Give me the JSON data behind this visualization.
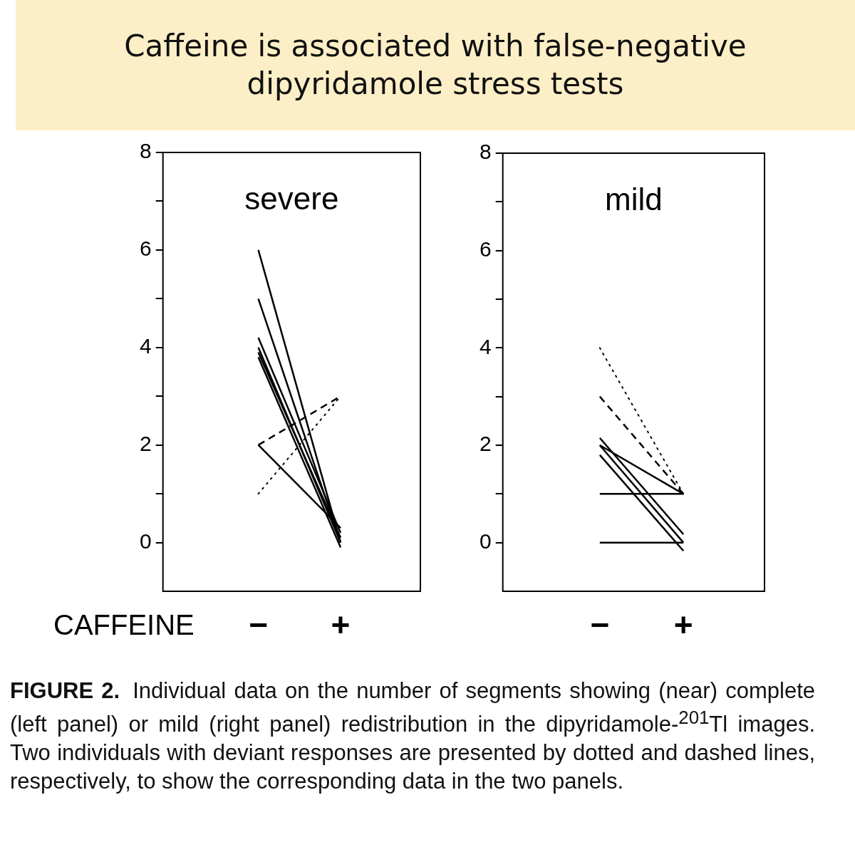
{
  "chart_data": [
    {
      "type": "line",
      "title": "Caffeine is associated with false-negative dipyridamole stress tests",
      "subtitle": "severe",
      "xlabel": "CAFFEINE",
      "categories": [
        "−",
        "+"
      ],
      "ylim": [
        -1,
        8
      ],
      "yticks": [
        0,
        {
          "value": 1,
          "label": null
        },
        2,
        {
          "value": 3,
          "label": null
        },
        4,
        {
          "value": 5,
          "label": null
        },
        6,
        {
          "value": 7,
          "label": null
        },
        8
      ],
      "grid": false,
      "legend": false,
      "marker": "none",
      "line_style": "solid",
      "series": [
        {
          "color": "#000000",
          "values": [
            6,
            0
          ]
        },
        {
          "color": "#000000",
          "values": [
            5,
            0
          ]
        },
        {
          "color": "#000000",
          "values": [
            4.2,
            0.2
          ]
        },
        {
          "color": "#000000",
          "values": [
            4,
            0
          ]
        },
        {
          "color": "#000000",
          "values": [
            3.9,
            0.1
          ]
        },
        {
          "color": "#000000",
          "values": [
            3.8,
            -0.1
          ]
        },
        {
          "color": "#000000",
          "values": [
            2,
            0.3
          ]
        },
        {
          "color": "#000000",
          "values": [
            2,
            3
          ],
          "line_style": "dashed"
        },
        {
          "color": "#000000",
          "values": [
            1,
            3
          ],
          "line_style": "dotted"
        }
      ]
    },
    {
      "type": "line",
      "subtitle": "mild",
      "categories": [
        "−",
        "+"
      ],
      "ylim": [
        -1,
        8
      ],
      "yticks": [
        0,
        {
          "value": 1,
          "label": null
        },
        2,
        {
          "value": 3,
          "label": null
        },
        4,
        {
          "value": 5,
          "label": null
        },
        6,
        {
          "value": 7,
          "label": null
        },
        8
      ],
      "grid": false,
      "legend": false,
      "marker": "none",
      "line_style": "solid",
      "annotations": [
        "FIGURE 2.",
        "Individual data on the number of segments showing (near) complete (left panel) or mild (right panel) redistribution in the dipyridamole-$^{201}$Tl images. Two individuals with deviant responses are presented by dotted and dashed lines, respectively, to show the corresponding data in the two panels."
      ],
      "series": [
        {
          "color": "#000000",
          "values": [
            4,
            1
          ],
          "line_style": "dotted"
        },
        {
          "color": "#000000",
          "values": [
            3,
            1
          ],
          "line_style": "dashed"
        },
        {
          "color": "#000000",
          "values": [
            2.15,
            0.17
          ]
        },
        {
          "color": "#000000",
          "values": [
            2,
            1
          ]
        },
        {
          "color": "#000000",
          "values": [
            2,
            0
          ]
        },
        {
          "color": "#000000",
          "values": [
            1.8,
            -0.17
          ]
        },
        {
          "color": "#000000",
          "values": [
            1,
            1
          ]
        },
        {
          "color": "#000000",
          "values": [
            0,
            0
          ]
        }
      ]
    }
  ]
}
